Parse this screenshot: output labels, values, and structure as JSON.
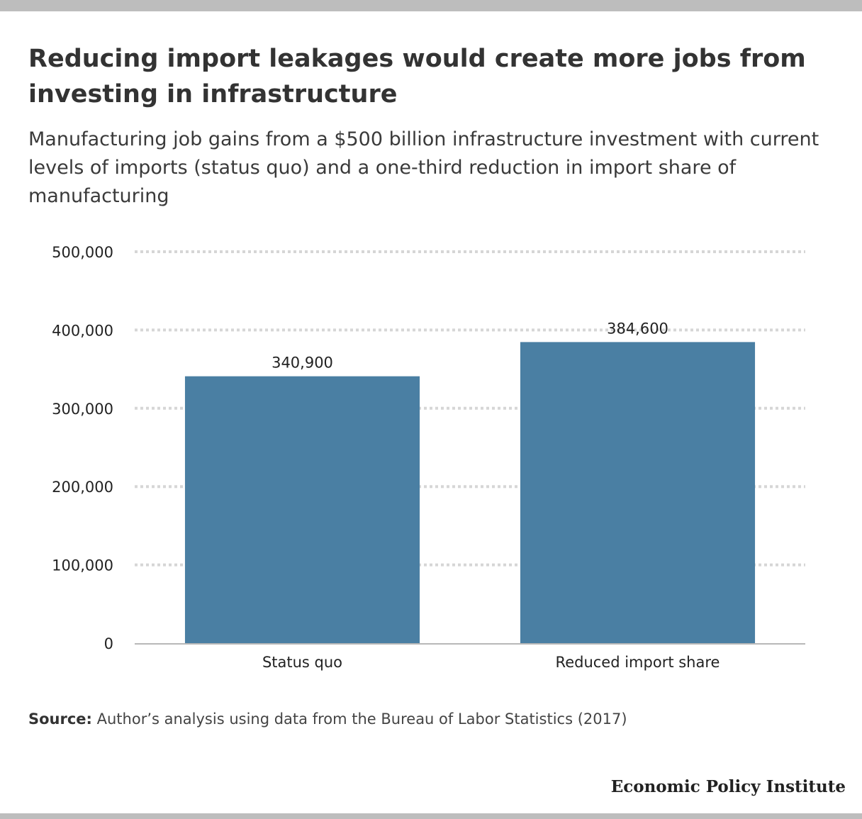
{
  "header": {
    "title": "Reducing import leakages would create more jobs from investing in infrastructure",
    "subtitle": "Manufacturing job gains from a $500 billion infrastructure investment with current levels of imports (status quo) and a one-third reduction in import share of manufacturing"
  },
  "chart_data": {
    "type": "bar",
    "title": "Reducing import leakages would create more jobs from investing in infrastructure",
    "subtitle": "Manufacturing job gains from a $500 billion infrastructure investment with current levels of imports (status quo) and a one-third reduction in import share of manufacturing",
    "categories": [
      "Status quo",
      "Reduced import share"
    ],
    "values": [
      340900,
      384600
    ],
    "value_labels": [
      "340,900",
      "384,600"
    ],
    "ylim": [
      0,
      500000
    ],
    "yticks": [
      0,
      100000,
      200000,
      300000,
      400000,
      500000
    ],
    "ytick_labels": [
      "0",
      "100,000",
      "200,000",
      "300,000",
      "400,000",
      "500,000"
    ],
    "xlabel": "",
    "ylabel": "",
    "grid": true,
    "bar_color": "#4a7fa3",
    "grid_color": "#d6d6d6",
    "axis_color": "#b8b8b8"
  },
  "footer": {
    "source_label": "Source:",
    "source_text": " Author’s analysis using data from the Bureau of Labor Statistics (2017)",
    "brand": "Economic Policy Institute"
  }
}
